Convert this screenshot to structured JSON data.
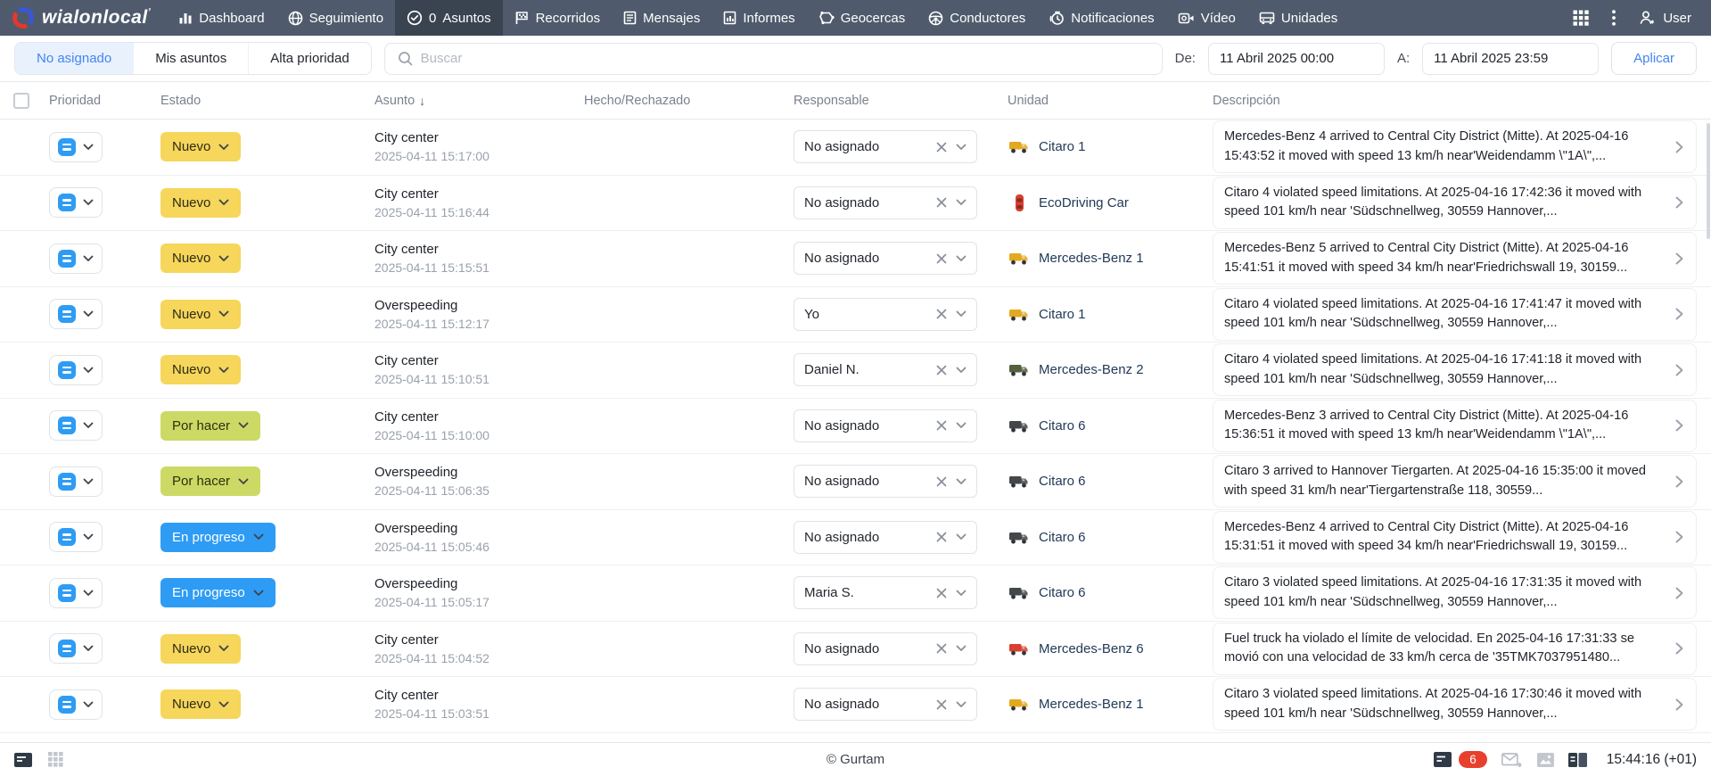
{
  "nav": {
    "logo_text": "wialonlocal",
    "logo_mark": "ʼ",
    "items": [
      {
        "icon": "dashboard",
        "label": "Dashboard",
        "active": false
      },
      {
        "icon": "globe",
        "label": "Seguimiento",
        "active": false
      },
      {
        "icon": "check-circle",
        "count": "0",
        "label": "Asuntos",
        "active": true
      },
      {
        "icon": "flag",
        "label": "Recorridos",
        "active": false
      },
      {
        "icon": "document",
        "label": "Mensajes",
        "active": false
      },
      {
        "icon": "report",
        "label": "Informes",
        "active": false
      },
      {
        "icon": "geofence",
        "label": "Geocercas",
        "active": false
      },
      {
        "icon": "steering-wheel",
        "label": "Conductores",
        "active": false
      },
      {
        "icon": "alarm",
        "label": "Notificaciones",
        "active": false
      },
      {
        "icon": "video",
        "label": "Vídeo",
        "active": false
      },
      {
        "icon": "bus",
        "label": "Unidades",
        "active": false
      }
    ],
    "user_label": "User"
  },
  "filters": {
    "tabs": [
      {
        "label": "No asignado",
        "active": true
      },
      {
        "label": "Mis asuntos",
        "active": false
      },
      {
        "label": "Alta prioridad",
        "active": false
      }
    ],
    "search_placeholder": "Buscar",
    "from_label": "De:",
    "from_value": "11 Abril 2025 00:00",
    "to_label": "A:",
    "to_value": "11 Abril 2025 23:59",
    "apply_label": "Aplicar"
  },
  "table": {
    "columns": {
      "prioridad": "Prioridad",
      "estado": "Estado",
      "asunto": "Asunto",
      "sort_arrow": "↓",
      "hecho": "Hecho/Rechazado",
      "responsable": "Responsable",
      "unidad": "Unidad",
      "descripcion": "Descripción"
    },
    "rows": [
      {
        "estado": {
          "label": "Nuevo",
          "type": "nuevo"
        },
        "asunto": {
          "title": "City center",
          "date": "2025-04-11 15:17:00"
        },
        "hecho": "",
        "responsable": "No asignado",
        "unidad": {
          "name": "Citaro 1",
          "vehicle": "truck",
          "color": "#e3a91f"
        },
        "descripcion": "Mercedes-Benz 4 arrived to Central City District (Mitte). At 2025-04-16 15:43:52 it moved with speed 13 km/h near'Weidendamm \\\"1A\\\",..."
      },
      {
        "estado": {
          "label": "Nuevo",
          "type": "nuevo"
        },
        "asunto": {
          "title": "City center",
          "date": "2025-04-11 15:16:44"
        },
        "hecho": "",
        "responsable": "No asignado",
        "unidad": {
          "name": "EcoDriving Car",
          "vehicle": "car",
          "color": "#d8402f"
        },
        "descripcion": "Citaro 4 violated speed limitations. At 2025-04-16 17:42:36 it moved with speed 101 km/h near 'Südschnellweg, 30559 Hannover,..."
      },
      {
        "estado": {
          "label": "Nuevo",
          "type": "nuevo"
        },
        "asunto": {
          "title": "City center",
          "date": "2025-04-11 15:15:51"
        },
        "hecho": "",
        "responsable": "No asignado",
        "unidad": {
          "name": "Mercedes-Benz 1",
          "vehicle": "truck",
          "color": "#e3a91f"
        },
        "descripcion": "Mercedes-Benz 5 arrived to Central City District (Mitte). At 2025-04-16 15:41:51 it moved with speed 34 km/h near'Friedrichswall 19, 30159..."
      },
      {
        "estado": {
          "label": "Nuevo",
          "type": "nuevo"
        },
        "asunto": {
          "title": "Overspeeding",
          "date": "2025-04-11 15:12:17"
        },
        "hecho": "",
        "responsable": "Yo",
        "unidad": {
          "name": "Citaro 1",
          "vehicle": "truck",
          "color": "#e3a91f"
        },
        "descripcion": "Citaro 4 violated speed limitations. At 2025-04-16 17:41:47 it moved with speed 101 km/h near 'Südschnellweg, 30559 Hannover,..."
      },
      {
        "estado": {
          "label": "Nuevo",
          "type": "nuevo"
        },
        "asunto": {
          "title": "City center",
          "date": "2025-04-11 15:10:51"
        },
        "hecho": "",
        "responsable": "Daniel N.",
        "unidad": {
          "name": "Mercedes-Benz 2",
          "vehicle": "truck",
          "color": "#55603c"
        },
        "descripcion": "Citaro 4 violated speed limitations. At 2025-04-16 17:41:18 it moved with speed 101 km/h near 'Südschnellweg, 30559 Hannover,..."
      },
      {
        "estado": {
          "label": "Por hacer",
          "type": "por-hacer"
        },
        "asunto": {
          "title": "City center",
          "date": "2025-04-11 15:10:00"
        },
        "hecho": "",
        "responsable": "No asignado",
        "unidad": {
          "name": "Citaro 6",
          "vehicle": "truck",
          "color": "#45484a"
        },
        "descripcion": "Mercedes-Benz 3 arrived to Central City District (Mitte). At 2025-04-16 15:36:51 it moved with speed 13 km/h near'Weidendamm \\\"1A\\\",..."
      },
      {
        "estado": {
          "label": "Por hacer",
          "type": "por-hacer"
        },
        "asunto": {
          "title": "Overspeeding",
          "date": "2025-04-11 15:06:35"
        },
        "hecho": "",
        "responsable": "No asignado",
        "unidad": {
          "name": "Citaro 6",
          "vehicle": "truck",
          "color": "#45484a"
        },
        "descripcion": "Citaro 3 arrived to Hannover Tiergarten. At 2025-04-16 15:35:00 it moved with speed 31 km/h near'Tiergartenstraße 118, 30559..."
      },
      {
        "estado": {
          "label": "En progreso",
          "type": "en-progreso"
        },
        "asunto": {
          "title": "Overspeeding",
          "date": "2025-04-11 15:05:46"
        },
        "hecho": "",
        "responsable": "No asignado",
        "unidad": {
          "name": "Citaro 6",
          "vehicle": "truck",
          "color": "#45484a"
        },
        "descripcion": "Mercedes-Benz 4 arrived to Central City District (Mitte). At 2025-04-16 15:31:51 it moved with speed 34 km/h near'Friedrichswall 19, 30159..."
      },
      {
        "estado": {
          "label": "En progreso",
          "type": "en-progreso"
        },
        "asunto": {
          "title": "Overspeeding",
          "date": "2025-04-11 15:05:17"
        },
        "hecho": "",
        "responsable": "Maria S.",
        "unidad": {
          "name": "Citaro 6",
          "vehicle": "truck",
          "color": "#45484a"
        },
        "descripcion": "Citaro 3 violated speed limitations. At 2025-04-16 17:31:35 it moved with speed 101 km/h near 'Südschnellweg, 30559 Hannover,..."
      },
      {
        "estado": {
          "label": "Nuevo",
          "type": "nuevo"
        },
        "asunto": {
          "title": "City center",
          "date": "2025-04-11 15:04:52"
        },
        "hecho": "",
        "responsable": "No asignado",
        "unidad": {
          "name": "Mercedes-Benz 6",
          "vehicle": "truck",
          "color": "#d8402f"
        },
        "descripcion": "Fuel truck ha violado el límite de velocidad. En 2025-04-16 17:31:33 se movió con una velocidad de 33 km/h cerca de '35TMK7037951480..."
      },
      {
        "estado": {
          "label": "Nuevo",
          "type": "nuevo"
        },
        "asunto": {
          "title": "City center",
          "date": "2025-04-11 15:03:51"
        },
        "hecho": "",
        "responsable": "No asignado",
        "unidad": {
          "name": "Mercedes-Benz 1",
          "vehicle": "truck",
          "color": "#e3a91f"
        },
        "descripcion": "Citaro 3 violated speed limitations. At 2025-04-16 17:30:46 it moved with speed 101 km/h near 'Südschnellweg, 30559 Hannover,..."
      }
    ]
  },
  "footer": {
    "copyright": "© Gurtam",
    "messages_badge": "6",
    "time": "15:44:16 (+01)"
  },
  "colors": {
    "nav_bg": "#4f5b6c",
    "nav_active_bg": "#3a4450",
    "accent_blue": "#4285f4",
    "status_nuevo": "#f6d65b",
    "status_por_hacer": "#ccd964",
    "status_en_progreso": "#2e9cf4",
    "badge_red": "#e8402f"
  }
}
